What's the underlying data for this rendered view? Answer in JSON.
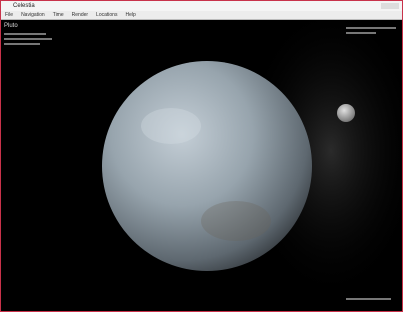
{
  "window": {
    "title": "Celestia"
  },
  "menu": [
    "File",
    "Navigation",
    "Time",
    "Render",
    "Locations",
    "Help"
  ],
  "overlay": {
    "object_name": "Pluto"
  }
}
